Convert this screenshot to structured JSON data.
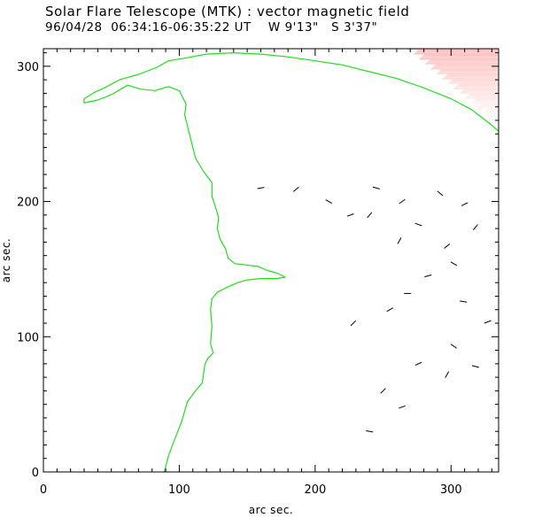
{
  "header": {
    "title": "Solar Flare Telescope (MTK) : vector magnetic field",
    "subtitle": "96/04/28  06:34:16-06:35:22 UT    W 9'13\"   S 3'37\""
  },
  "colors": {
    "contour": "#22dd22",
    "shaded_region": "#ff9090",
    "vectors": "#000000",
    "axes": "#000000"
  },
  "chart_data": {
    "type": "scatter",
    "title": "Solar Flare Telescope (MTK) : vector magnetic field",
    "subtitle": "96/04/28  06:34:16-06:35:22 UT    W 9'13\"   S 3'37\"",
    "xlabel": "arc sec.",
    "ylabel": "arc sec.",
    "xlim": [
      0,
      335
    ],
    "ylim": [
      0,
      313
    ],
    "x_ticks": [
      0,
      100,
      200,
      300
    ],
    "y_ticks": [
      0,
      100,
      200,
      300
    ],
    "grid": false,
    "contour_line": [
      [
        89,
        0
      ],
      [
        92,
        12
      ],
      [
        97,
        25
      ],
      [
        102,
        38
      ],
      [
        106,
        52
      ],
      [
        112,
        60
      ],
      [
        117,
        66
      ],
      [
        118,
        74
      ],
      [
        119,
        80
      ],
      [
        121,
        84
      ],
      [
        125,
        88
      ],
      [
        123,
        95
      ],
      [
        124,
        108
      ],
      [
        123,
        120
      ],
      [
        124,
        128
      ],
      [
        128,
        133
      ],
      [
        136,
        137
      ],
      [
        143,
        140
      ],
      [
        150,
        142
      ],
      [
        160,
        143
      ],
      [
        171,
        143
      ],
      [
        178,
        144
      ],
      [
        172,
        147
      ],
      [
        165,
        149
      ],
      [
        158,
        152
      ],
      [
        150,
        153
      ],
      [
        141,
        154
      ],
      [
        136,
        158
      ],
      [
        134,
        165
      ],
      [
        130,
        172
      ],
      [
        128,
        180
      ],
      [
        129,
        188
      ],
      [
        126,
        198
      ],
      [
        124,
        204
      ],
      [
        124,
        214
      ],
      [
        118,
        222
      ],
      [
        112,
        232
      ],
      [
        109,
        244
      ],
      [
        106,
        256
      ],
      [
        104,
        264
      ],
      [
        105,
        272
      ],
      [
        100,
        282
      ],
      [
        92,
        285
      ],
      [
        82,
        282
      ],
      [
        72,
        283
      ],
      [
        62,
        286
      ],
      [
        50,
        279
      ],
      [
        40,
        275
      ],
      [
        30,
        273
      ],
      [
        30,
        276
      ],
      [
        38,
        281
      ],
      [
        45,
        284
      ],
      [
        56,
        290
      ],
      [
        70,
        294
      ],
      [
        83,
        299
      ],
      [
        92,
        304
      ],
      [
        104,
        306
      ],
      [
        120,
        309
      ],
      [
        140,
        310
      ],
      [
        160,
        309
      ],
      [
        180,
        307
      ],
      [
        200,
        304
      ],
      [
        220,
        301
      ],
      [
        240,
        296
      ],
      [
        260,
        291
      ],
      [
        280,
        284
      ],
      [
        300,
        276
      ],
      [
        315,
        268
      ],
      [
        328,
        258
      ],
      [
        335,
        252
      ]
    ],
    "vectors": [
      {
        "x": 160,
        "y": 210,
        "angle": 10
      },
      {
        "x": 186,
        "y": 209,
        "angle": 40
      },
      {
        "x": 210,
        "y": 200,
        "angle": -30
      },
      {
        "x": 226,
        "y": 190,
        "angle": 20
      },
      {
        "x": 240,
        "y": 190,
        "angle": 50
      },
      {
        "x": 245,
        "y": 210,
        "angle": -15
      },
      {
        "x": 264,
        "y": 200,
        "angle": 35
      },
      {
        "x": 292,
        "y": 206,
        "angle": -40
      },
      {
        "x": 310,
        "y": 198,
        "angle": 25
      },
      {
        "x": 262,
        "y": 171,
        "angle": 60
      },
      {
        "x": 276,
        "y": 183,
        "angle": -20
      },
      {
        "x": 297,
        "y": 167,
        "angle": 40
      },
      {
        "x": 302,
        "y": 154,
        "angle": -30
      },
      {
        "x": 283,
        "y": 145,
        "angle": 15
      },
      {
        "x": 318,
        "y": 181,
        "angle": 50
      },
      {
        "x": 268,
        "y": 132,
        "angle": 0
      },
      {
        "x": 255,
        "y": 120,
        "angle": 30
      },
      {
        "x": 309,
        "y": 126,
        "angle": -10
      },
      {
        "x": 228,
        "y": 110,
        "angle": 45
      },
      {
        "x": 327,
        "y": 111,
        "angle": 20
      },
      {
        "x": 302,
        "y": 93,
        "angle": -35
      },
      {
        "x": 276,
        "y": 80,
        "angle": 25
      },
      {
        "x": 297,
        "y": 72,
        "angle": 60
      },
      {
        "x": 318,
        "y": 78,
        "angle": -15
      },
      {
        "x": 264,
        "y": 48,
        "angle": 20
      },
      {
        "x": 250,
        "y": 60,
        "angle": 45
      },
      {
        "x": 240,
        "y": 30,
        "angle": -10
      }
    ]
  }
}
